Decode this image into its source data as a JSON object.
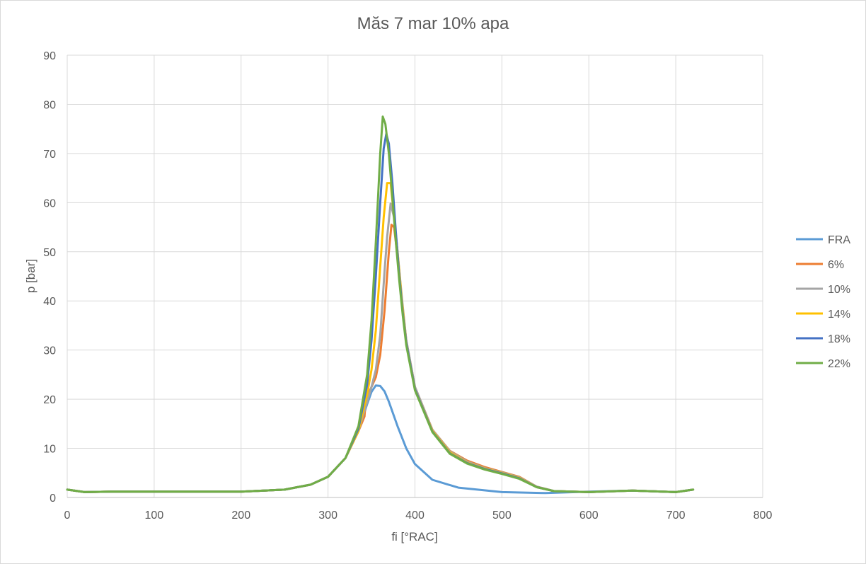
{
  "chart_data": {
    "type": "line",
    "title": "Măs 7 mar 10% apa",
    "xlabel": "fi [°RAC]",
    "ylabel": "p [bar]",
    "xlim": [
      0,
      800
    ],
    "ylim": [
      0,
      90
    ],
    "xticks": [
      0,
      100,
      200,
      300,
      400,
      500,
      600,
      700,
      800
    ],
    "yticks": [
      0,
      10,
      20,
      30,
      40,
      50,
      60,
      70,
      80,
      90
    ],
    "grid": true,
    "legend_position": "right",
    "series": [
      {
        "name": "FRA",
        "color": "#5b9bd5",
        "x": [
          0,
          20,
          50,
          100,
          150,
          200,
          250,
          280,
          300,
          320,
          335,
          345,
          350,
          355,
          360,
          365,
          370,
          380,
          390,
          400,
          420,
          450,
          500,
          550,
          600,
          650,
          700,
          720
        ],
        "y": [
          1.6,
          1.1,
          1.2,
          1.2,
          1.2,
          1.2,
          1.6,
          2.6,
          4.2,
          8.0,
          13.5,
          19.0,
          21.5,
          22.8,
          22.7,
          21.6,
          19.5,
          14.5,
          10.0,
          6.8,
          3.6,
          2.0,
          1.1,
          0.9,
          1.2,
          1.4,
          1.1,
          1.6
        ]
      },
      {
        "name": "6%",
        "color": "#ed7d31",
        "x": [
          0,
          20,
          50,
          100,
          150,
          200,
          250,
          280,
          300,
          320,
          335,
          342,
          343,
          345,
          350,
          355,
          360,
          365,
          370,
          373,
          376,
          380,
          385,
          390,
          400,
          420,
          440,
          460,
          480,
          500,
          520,
          540,
          560,
          600,
          650,
          700,
          720
        ],
        "y": [
          1.6,
          1.1,
          1.2,
          1.2,
          1.2,
          1.2,
          1.6,
          2.6,
          4.2,
          8.0,
          13.5,
          16.5,
          19.0,
          20.5,
          22.5,
          24.5,
          29.0,
          38.0,
          50.0,
          55.5,
          55.0,
          49.0,
          40.0,
          32.0,
          22.5,
          13.8,
          9.5,
          7.5,
          6.2,
          5.2,
          4.2,
          2.2,
          1.3,
          1.1,
          1.4,
          1.1,
          1.6
        ]
      },
      {
        "name": "10%",
        "color": "#a5a5a5",
        "x": [
          0,
          20,
          50,
          100,
          150,
          200,
          250,
          280,
          300,
          320,
          335,
          345,
          350,
          355,
          360,
          365,
          368,
          372,
          376,
          380,
          385,
          390,
          400,
          420,
          440,
          460,
          480,
          500,
          520,
          540,
          560,
          600,
          650,
          700,
          720
        ],
        "y": [
          1.6,
          1.1,
          1.2,
          1.2,
          1.2,
          1.2,
          1.6,
          2.6,
          4.2,
          8.0,
          13.5,
          19.5,
          22.5,
          26.0,
          33.0,
          46.0,
          53.0,
          59.8,
          57.0,
          50.0,
          40.5,
          32.0,
          22.5,
          13.8,
          9.4,
          7.3,
          6.0,
          5.1,
          4.1,
          2.2,
          1.3,
          1.1,
          1.4,
          1.1,
          1.6
        ]
      },
      {
        "name": "14%",
        "color": "#ffc000",
        "x": [
          0,
          20,
          50,
          100,
          150,
          200,
          250,
          280,
          300,
          320,
          335,
          345,
          350,
          355,
          360,
          364,
          368,
          372,
          376,
          380,
          385,
          390,
          400,
          420,
          440,
          460,
          480,
          500,
          520,
          540,
          560,
          600,
          650,
          700,
          720
        ],
        "y": [
          1.6,
          1.1,
          1.2,
          1.2,
          1.2,
          1.2,
          1.6,
          2.6,
          4.2,
          8.0,
          13.5,
          21.0,
          26.0,
          34.0,
          47.0,
          57.0,
          64.0,
          64.0,
          57.0,
          50.0,
          40.0,
          31.5,
          22.0,
          13.6,
          9.2,
          7.1,
          5.9,
          5.0,
          4.0,
          2.1,
          1.3,
          1.1,
          1.4,
          1.1,
          1.6
        ]
      },
      {
        "name": "18%",
        "color": "#4472c4",
        "x": [
          0,
          20,
          50,
          100,
          150,
          200,
          250,
          280,
          300,
          320,
          335,
          345,
          350,
          355,
          360,
          364,
          367,
          370,
          374,
          378,
          382,
          386,
          390,
          400,
          420,
          440,
          460,
          480,
          500,
          520,
          540,
          560,
          600,
          650,
          700,
          720
        ],
        "y": [
          1.6,
          1.1,
          1.2,
          1.2,
          1.2,
          1.2,
          1.6,
          2.6,
          4.2,
          8.0,
          14.0,
          23.0,
          32.0,
          45.0,
          60.0,
          71.0,
          74.0,
          72.0,
          64.0,
          54.0,
          45.0,
          37.5,
          31.5,
          22.0,
          13.4,
          9.0,
          7.0,
          5.8,
          4.9,
          3.9,
          2.1,
          1.3,
          1.1,
          1.4,
          1.1,
          1.6
        ]
      },
      {
        "name": "22%",
        "color": "#70ad47",
        "x": [
          0,
          20,
          50,
          100,
          150,
          200,
          250,
          280,
          300,
          320,
          335,
          345,
          350,
          355,
          360,
          363,
          366,
          370,
          374,
          378,
          382,
          386,
          390,
          400,
          420,
          440,
          460,
          480,
          500,
          520,
          540,
          560,
          600,
          650,
          700,
          720
        ],
        "y": [
          1.6,
          1.1,
          1.2,
          1.2,
          1.2,
          1.2,
          1.6,
          2.6,
          4.2,
          8.0,
          14.5,
          25.0,
          36.0,
          52.0,
          70.0,
          77.5,
          76.0,
          70.0,
          61.0,
          52.0,
          44.0,
          37.0,
          31.0,
          21.8,
          13.3,
          8.9,
          6.9,
          5.7,
          4.8,
          3.8,
          2.1,
          1.3,
          1.1,
          1.4,
          1.1,
          1.6
        ]
      }
    ]
  }
}
